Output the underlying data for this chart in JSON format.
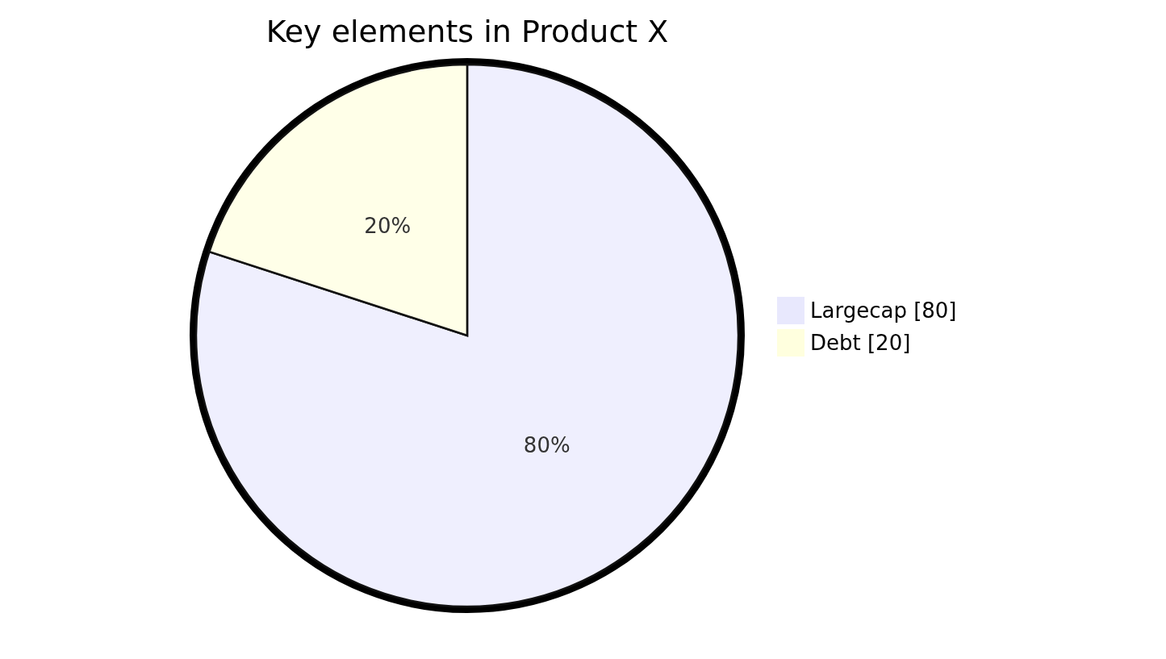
{
  "chart_data": {
    "type": "pie",
    "title": "Key elements in Product X",
    "categories": [
      "Largecap [80]",
      "Debt [20]"
    ],
    "values": [
      80,
      20
    ],
    "value_labels": [
      "80%",
      "20%"
    ],
    "colors": [
      "#e8e8fd",
      "#ffffde"
    ],
    "legend": "right"
  }
}
